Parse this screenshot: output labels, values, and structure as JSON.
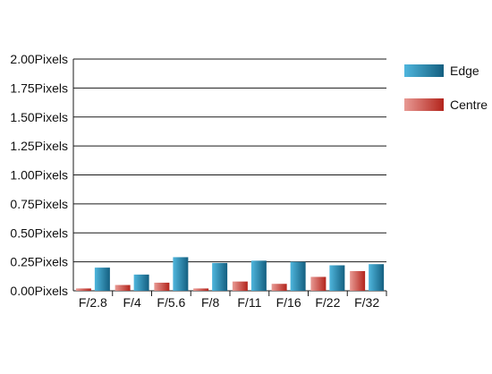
{
  "chart_data": {
    "type": "bar",
    "categories": [
      "F/2.8",
      "F/4",
      "F/5.6",
      "F/8",
      "F/11",
      "F/16",
      "F/22",
      "F/32"
    ],
    "series": [
      {
        "name": "Centre",
        "values": [
          0.02,
          0.05,
          0.07,
          0.02,
          0.08,
          0.06,
          0.12,
          0.17
        ],
        "color": "#c0392b"
      },
      {
        "name": "Edge",
        "values": [
          0.2,
          0.14,
          0.29,
          0.24,
          0.26,
          0.25,
          0.22,
          0.23
        ],
        "color": "#1e7fa6"
      }
    ],
    "y_tick_labels": [
      "0.00Pixels",
      "0.25Pixels",
      "0.50Pixels",
      "0.75Pixels",
      "1.00Pixels",
      "1.25Pixels",
      "1.50Pixels",
      "1.75Pixels",
      "2.00Pixels"
    ],
    "y_ticks": [
      0,
      0.25,
      0.5,
      0.75,
      1.0,
      1.25,
      1.5,
      1.75,
      2.0
    ],
    "ylim": [
      0,
      2.0
    ],
    "title": "",
    "xlabel": "",
    "ylabel": "",
    "grid": true,
    "legend": {
      "placement": "top-right",
      "order": [
        "Edge",
        "Centre"
      ]
    }
  }
}
